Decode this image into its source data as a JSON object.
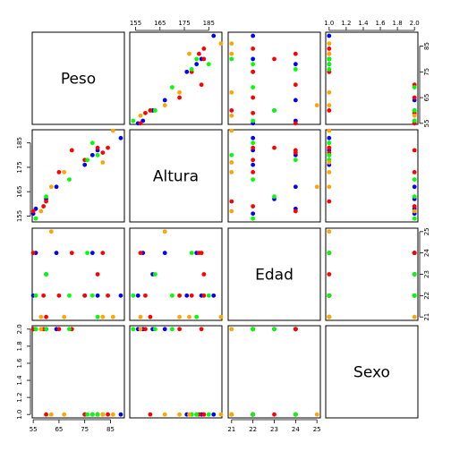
{
  "chart_data": {
    "type": "scatter",
    "kind": "scatterplot-matrix",
    "variables": [
      "Peso",
      "Altura",
      "Edad",
      "Sexo"
    ],
    "ranges": {
      "Peso": [
        54.6,
        90.4
      ],
      "Altura": [
        152.6,
        190.4
      ],
      "Edad": [
        20.84,
        25.16
      ],
      "Sexo": [
        0.96,
        2.04
      ]
    },
    "ticks": {
      "Peso": [
        55,
        65,
        75,
        85
      ],
      "Altura": [
        155,
        165,
        175,
        185
      ],
      "Edad": [
        21,
        22,
        23,
        24,
        25
      ],
      "Sexo": [
        1.0,
        1.2,
        1.4,
        1.6,
        1.8,
        2.0
      ]
    },
    "tick_labels": {
      "Peso": [
        "55",
        "65",
        "75",
        "85"
      ],
      "Altura": [
        "155",
        "165",
        "175",
        "185"
      ],
      "Edad": [
        "21",
        "22",
        "23",
        "24",
        "25"
      ],
      "Sexo": [
        "1.0",
        "1.2",
        "1.4",
        "1.6",
        "1.8",
        "2.0"
      ]
    },
    "colors": {
      "blue": "#0000ff",
      "red": "#ff0000",
      "green": "#00ff00",
      "orange": "#ffa500"
    },
    "points": [
      {
        "Peso": 89,
        "Altura": 187,
        "Edad": 22,
        "Sexo": 1,
        "color": "blue"
      },
      {
        "Peso": 80,
        "Altura": 182,
        "Edad": 22,
        "Sexo": 1,
        "color": "blue"
      },
      {
        "Peso": 78,
        "Altura": 180,
        "Edad": 24,
        "Sexo": 1,
        "color": "blue"
      },
      {
        "Peso": 75,
        "Altura": 176,
        "Edad": 22,
        "Sexo": 1,
        "color": "blue"
      },
      {
        "Peso": 64,
        "Altura": 167,
        "Edad": 24,
        "Sexo": 2,
        "color": "blue"
      },
      {
        "Peso": 60,
        "Altura": 162,
        "Edad": 23,
        "Sexo": 2,
        "color": "blue"
      },
      {
        "Peso": 55,
        "Altura": 156,
        "Edad": 22,
        "Sexo": 2,
        "color": "blue"
      },
      {
        "Peso": 56,
        "Altura": 158,
        "Edad": 24,
        "Sexo": 2,
        "color": "blue"
      },
      {
        "Peso": 84,
        "Altura": 183,
        "Edad": 22,
        "Sexo": 1,
        "color": "red"
      },
      {
        "Peso": 82,
        "Altura": 181,
        "Edad": 24,
        "Sexo": 1,
        "color": "red"
      },
      {
        "Peso": 80,
        "Altura": 183,
        "Edad": 23,
        "Sexo": 1,
        "color": "red"
      },
      {
        "Peso": 75,
        "Altura": 178,
        "Edad": 22,
        "Sexo": 1,
        "color": "red"
      },
      {
        "Peso": 70,
        "Altura": 182,
        "Edad": 24,
        "Sexo": 2,
        "color": "red"
      },
      {
        "Peso": 65,
        "Altura": 173,
        "Edad": 22,
        "Sexo": 2,
        "color": "red"
      },
      {
        "Peso": 60,
        "Altura": 161,
        "Edad": 21,
        "Sexo": 1,
        "color": "red"
      },
      {
        "Peso": 59,
        "Altura": 159,
        "Edad": 22,
        "Sexo": 2,
        "color": "red"
      },
      {
        "Peso": 55,
        "Altura": 157,
        "Edad": 24,
        "Sexo": 2,
        "color": "red"
      },
      {
        "Peso": 78,
        "Altura": 185,
        "Edad": 22,
        "Sexo": 1,
        "color": "green"
      },
      {
        "Peso": 80,
        "Altura": 180,
        "Edad": 21,
        "Sexo": 1,
        "color": "green"
      },
      {
        "Peso": 76,
        "Altura": 178,
        "Edad": 24,
        "Sexo": 1,
        "color": "green"
      },
      {
        "Peso": 69,
        "Altura": 170,
        "Edad": 22,
        "Sexo": 2,
        "color": "green"
      },
      {
        "Peso": 60,
        "Altura": 163,
        "Edad": 23,
        "Sexo": 2,
        "color": "green"
      },
      {
        "Peso": 56,
        "Altura": 154,
        "Edad": 22,
        "Sexo": 2,
        "color": "green"
      },
      {
        "Peso": 86,
        "Altura": 190,
        "Edad": 21,
        "Sexo": 1,
        "color": "orange"
      },
      {
        "Peso": 82,
        "Altura": 177,
        "Edad": 21,
        "Sexo": 1,
        "color": "orange"
      },
      {
        "Peso": 67,
        "Altura": 173,
        "Edad": 21,
        "Sexo": 1,
        "color": "orange"
      },
      {
        "Peso": 62,
        "Altura": 167,
        "Edad": 25,
        "Sexo": 1,
        "color": "orange"
      },
      {
        "Peso": 58,
        "Altura": 157,
        "Edad": 21,
        "Sexo": 2,
        "color": "orange"
      }
    ]
  }
}
